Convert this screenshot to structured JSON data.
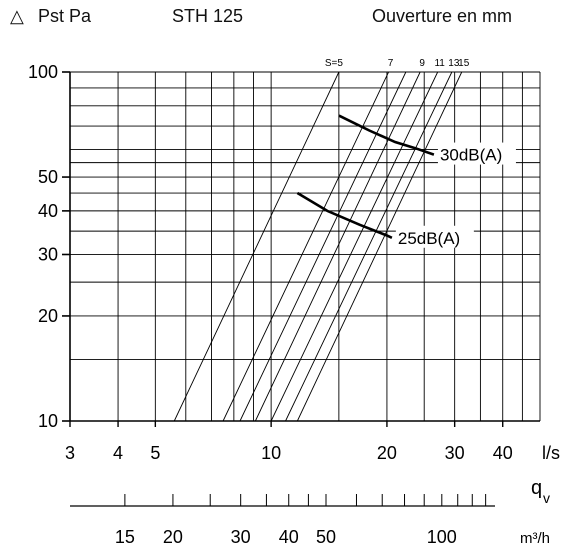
{
  "header": {
    "symbol": "△",
    "ylabel": "Pst Pa",
    "model": "STH 125",
    "opening_label": "Ouverture en mm"
  },
  "chart_data": {
    "type": "line",
    "x_scale": "log",
    "y_scale": "log",
    "xlim": [
      3,
      50
    ],
    "ylim": [
      10,
      100
    ],
    "x_unit": "l/s",
    "x_ticks": [
      3,
      4,
      5,
      10,
      20,
      30,
      40
    ],
    "y_ticks": [
      10,
      20,
      30,
      40,
      50,
      100
    ],
    "grid": true,
    "series": [
      {
        "name": "S=5",
        "points": [
          [
            5.6,
            10
          ],
          [
            15.0,
            100
          ]
        ]
      },
      {
        "name": "7",
        "points": [
          [
            7.5,
            10
          ],
          [
            20.2,
            100
          ]
        ]
      },
      {
        "name": "",
        "points": [
          [
            8.3,
            10
          ],
          [
            22.4,
            100
          ]
        ]
      },
      {
        "name": "9",
        "points": [
          [
            9.1,
            10
          ],
          [
            24.4,
            100
          ]
        ]
      },
      {
        "name": "11",
        "points": [
          [
            10.0,
            10
          ],
          [
            27.1,
            100
          ]
        ]
      },
      {
        "name": "13",
        "points": [
          [
            10.9,
            10
          ],
          [
            29.5,
            100
          ]
        ]
      },
      {
        "name": "15",
        "points": [
          [
            11.7,
            10
          ],
          [
            31.3,
            100
          ]
        ]
      }
    ],
    "noise_curves": [
      {
        "label": "30dB(A)",
        "points": [
          [
            15.0,
            75
          ],
          [
            18.0,
            68
          ],
          [
            21.0,
            63
          ],
          [
            23.7,
            60.5
          ],
          [
            26.5,
            58
          ]
        ]
      },
      {
        "label": "25dB(A)",
        "points": [
          [
            11.7,
            45
          ],
          [
            14.0,
            40
          ],
          [
            17.0,
            36.5
          ],
          [
            20.0,
            34
          ],
          [
            20.6,
            33.5
          ]
        ]
      }
    ],
    "secondary_axis": {
      "label_symbol": "q",
      "label_subscript": "v",
      "unit": "m³/h",
      "ticks": [
        15,
        20,
        30,
        40,
        50,
        100
      ]
    }
  }
}
